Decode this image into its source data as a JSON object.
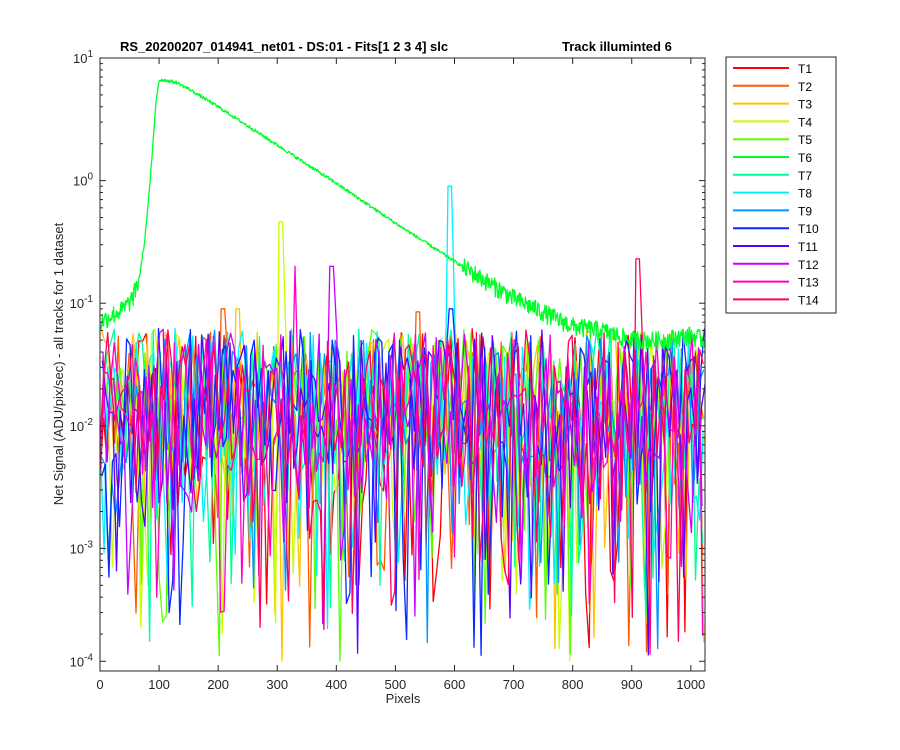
{
  "chart_data": {
    "type": "line",
    "title": "RS_20200207_014941_net01 - DS:01 - Fits[1  2  3  4]   slc",
    "subtitle": "Track illuminted 6",
    "xlabel": "Pixels",
    "ylabel": "Net Signal (ADU/pix/sec) - all tracks for 1 dataset",
    "xlim": [
      0,
      1024
    ],
    "ylim": [
      0.0001,
      10
    ],
    "yscale": "log",
    "grid": false,
    "legend_position": "outside-top-right",
    "x_ticks": [
      0,
      100,
      200,
      300,
      400,
      500,
      600,
      700,
      800,
      900,
      1000
    ],
    "x_tick_labels": [
      "0",
      "100",
      "200",
      "300",
      "400",
      "500",
      "600",
      "700",
      "800",
      "900",
      "1000"
    ],
    "y_ticks": [
      0.0001,
      0.001,
      0.01,
      0.1,
      1,
      10
    ],
    "y_tick_labels": [
      {
        "base": "10",
        "exp": "-4"
      },
      {
        "base": "10",
        "exp": "-3"
      },
      {
        "base": "10",
        "exp": "-2"
      },
      {
        "base": "10",
        "exp": "-1"
      },
      {
        "base": "10",
        "exp": "0"
      },
      {
        "base": "10",
        "exp": "1"
      }
    ],
    "illuminated_series": "T6",
    "illuminated_profile": {
      "x": [
        0,
        20,
        40,
        55,
        65,
        75,
        85,
        95,
        100,
        110,
        130,
        150,
        200,
        300,
        400,
        500,
        600,
        700,
        800,
        850,
        900,
        950,
        1000,
        1024
      ],
      "y": [
        0.07,
        0.08,
        0.09,
        0.11,
        0.15,
        0.3,
        1.0,
        4.5,
        6.6,
        6.6,
        6.3,
        5.6,
        4.0,
        1.95,
        0.95,
        0.45,
        0.22,
        0.11,
        0.065,
        0.06,
        0.05,
        0.05,
        0.055,
        0.05
      ]
    },
    "noise_profile": {
      "median": 0.012,
      "typical_high": 0.07,
      "typical_low": 0.001
    },
    "series": [
      {
        "name": "T1",
        "color": "#ff0000",
        "spikes": []
      },
      {
        "name": "T2",
        "color": "#ff5a00",
        "spikes": [
          {
            "x": 208,
            "y": 0.09
          },
          {
            "x": 539,
            "y": 0.085
          }
        ]
      },
      {
        "name": "T3",
        "color": "#ffc200",
        "spikes": [
          {
            "x": 233,
            "y": 0.09
          }
        ]
      },
      {
        "name": "T4",
        "color": "#c8ff00",
        "spikes": [
          {
            "x": 306,
            "y": 0.46
          }
        ]
      },
      {
        "name": "T5",
        "color": "#5aff00",
        "spikes": []
      },
      {
        "name": "T6",
        "color": "#00ff2a",
        "spikes": []
      },
      {
        "name": "T7",
        "color": "#00ff9b",
        "spikes": []
      },
      {
        "name": "T8",
        "color": "#00f0ff",
        "spikes": [
          {
            "x": 590,
            "y": 0.9
          }
        ]
      },
      {
        "name": "T9",
        "color": "#0096ff",
        "spikes": []
      },
      {
        "name": "T10",
        "color": "#0a28ff",
        "spikes": [
          {
            "x": 594,
            "y": 0.09
          }
        ]
      },
      {
        "name": "T11",
        "color": "#5a00ff",
        "spikes": []
      },
      {
        "name": "T12",
        "color": "#c800ff",
        "spikes": [
          {
            "x": 392,
            "y": 0.2
          }
        ]
      },
      {
        "name": "T13",
        "color": "#ff00c8",
        "spikes": [
          {
            "x": 330,
            "y": 0.2
          }
        ]
      },
      {
        "name": "T14",
        "color": "#ff0064",
        "spikes": [
          {
            "x": 910,
            "y": 0.23
          }
        ]
      }
    ]
  }
}
